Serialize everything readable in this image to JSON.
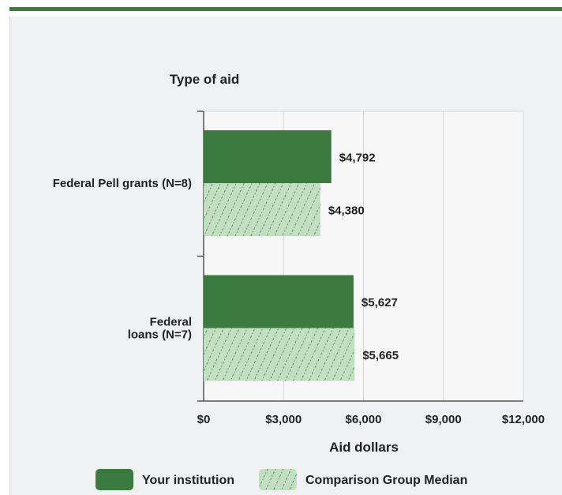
{
  "chart_data": {
    "type": "bar",
    "orientation": "horizontal",
    "ylabel": "Type of aid",
    "xlabel": "Aid dollars",
    "categories": [
      [
        "Federal Pell grants (N=8)"
      ],
      [
        "Federal",
        "loans (N=7)"
      ]
    ],
    "series": [
      {
        "name": "Your institution",
        "values": [
          4792,
          5627
        ],
        "labels": [
          "$4,792",
          "$5,627"
        ],
        "color": "#3b7b3f"
      },
      {
        "name": "Comparison Group Median",
        "values": [
          4380,
          5665
        ],
        "labels": [
          "$4,380",
          "$5,665"
        ],
        "color": "#c3dfc1",
        "pattern": "hatched"
      }
    ],
    "xlim": [
      0,
      12000
    ],
    "xticks": [
      0,
      3000,
      6000,
      9000,
      12000
    ],
    "xtick_labels": [
      "$0",
      "$3,000",
      "$6,000",
      "$9,000",
      "$12,000"
    ],
    "grid": "vertical",
    "legend_position": "bottom"
  }
}
